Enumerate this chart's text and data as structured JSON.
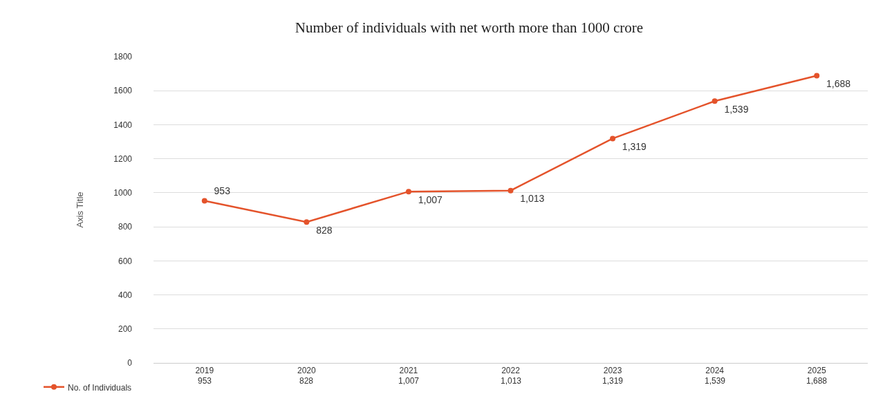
{
  "chart_data": {
    "type": "line",
    "title": "Number of individuals with net worth more than 1000 crore",
    "ylabel": "Axis Title",
    "categories": [
      "2019",
      "2020",
      "2021",
      "2022",
      "2023",
      "2024",
      "2025"
    ],
    "series": [
      {
        "name": "No. of Individuals",
        "color": "#e4532b",
        "values": [
          953,
          828,
          1007,
          1013,
          1319,
          1539,
          1688
        ],
        "value_labels": [
          "953",
          "828",
          "1,007",
          "1,013",
          "1,319",
          "1,539",
          "1,688"
        ]
      }
    ],
    "ylim": [
      0,
      1800
    ],
    "yticks": [
      0,
      200,
      400,
      600,
      800,
      1000,
      1200,
      1400,
      1600,
      1800
    ],
    "grid": "y",
    "legend": "bottom left",
    "marker": "circle",
    "line_style": "solid"
  }
}
